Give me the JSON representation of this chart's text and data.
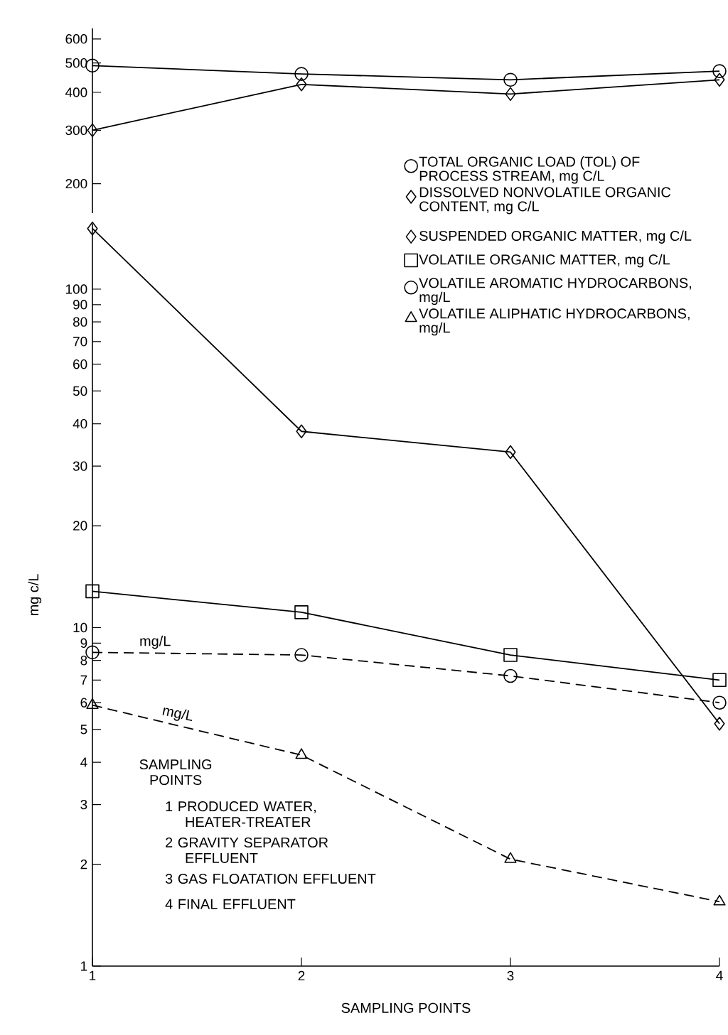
{
  "chart_data": [
    {
      "type": "line",
      "x": [
        1,
        2,
        3,
        4
      ],
      "xlim": [
        1,
        4
      ],
      "xticks": [
        1,
        2,
        3,
        4
      ],
      "ylim": [
        160,
        650
      ],
      "yticks": [
        200,
        300,
        400,
        500,
        600
      ],
      "log": "y",
      "tick_labels": "y",
      "legend": "bottom right",
      "series": [
        {
          "name": "TOTAL ORGANIC LOAD (TOL) OF PROCESS STREAM, mg C/L",
          "color": "#000000",
          "marker": "circle",
          "line_style": "solid",
          "values": [
            490,
            460,
            440,
            470
          ]
        },
        {
          "name": "DISSOLVED NONVOLATILE ORGANIC CONTENT, mg C/L",
          "color": "#000000",
          "marker": "diamond",
          "line_style": "solid",
          "values": [
            300,
            425,
            395,
            440
          ]
        }
      ]
    },
    {
      "type": "line",
      "x": [
        1,
        2,
        3,
        4
      ],
      "xlim": [
        1,
        4
      ],
      "xticks": [
        1,
        2,
        3,
        4
      ],
      "ylim": [
        1,
        156
      ],
      "yticks": [
        1,
        2,
        3,
        4,
        5,
        6,
        7,
        8,
        9,
        10,
        20,
        30,
        40,
        50,
        60,
        70,
        80,
        90,
        100
      ],
      "log": "y",
      "legend": "top right",
      "xlabel": "SAMPLING POINTS",
      "ylabel": "mg c/L",
      "series": [
        {
          "name": "SUSPENDED ORGANIC MATTER, mg C/L",
          "color": "#000000",
          "marker": "diamond",
          "line_style": "solid",
          "values": [
            151,
            38,
            33,
            5.2
          ]
        },
        {
          "name": "VOLATILE ORGANIC MATTER, mg C/L",
          "color": "#000000",
          "marker": "square",
          "line_style": "solid",
          "values": [
            12.8,
            11.1,
            8.3,
            7.0
          ]
        },
        {
          "name": "VOLATILE AROMATIC HYDROCARBONS, mg/L",
          "color": "#000000",
          "marker": "circle",
          "line_style": "dashed",
          "values": [
            8.45,
            8.3,
            7.2,
            6.0
          ]
        },
        {
          "name": "VOLATILE ALIPHATIC HYDROCARBONS, mg/L",
          "color": "#000000",
          "marker": "triangle",
          "line_style": "dashed",
          "values": [
            5.9,
            4.2,
            2.07,
            1.55
          ]
        }
      ],
      "annotations": [
        {
          "text": "mg/L",
          "x": 1.3,
          "y": 8.4
        },
        {
          "text": "mg/L",
          "x": 1.4,
          "y": 5.15
        },
        "SAMPLING POINTS",
        "1 PRODUCED WATER, HEATER-TREATER",
        "2 GRAVITY SEPARATOR EFFLUENT",
        "3 GAS FLOATATION EFFLUENT",
        "4 FINAL EFFLUENT"
      ]
    }
  ]
}
